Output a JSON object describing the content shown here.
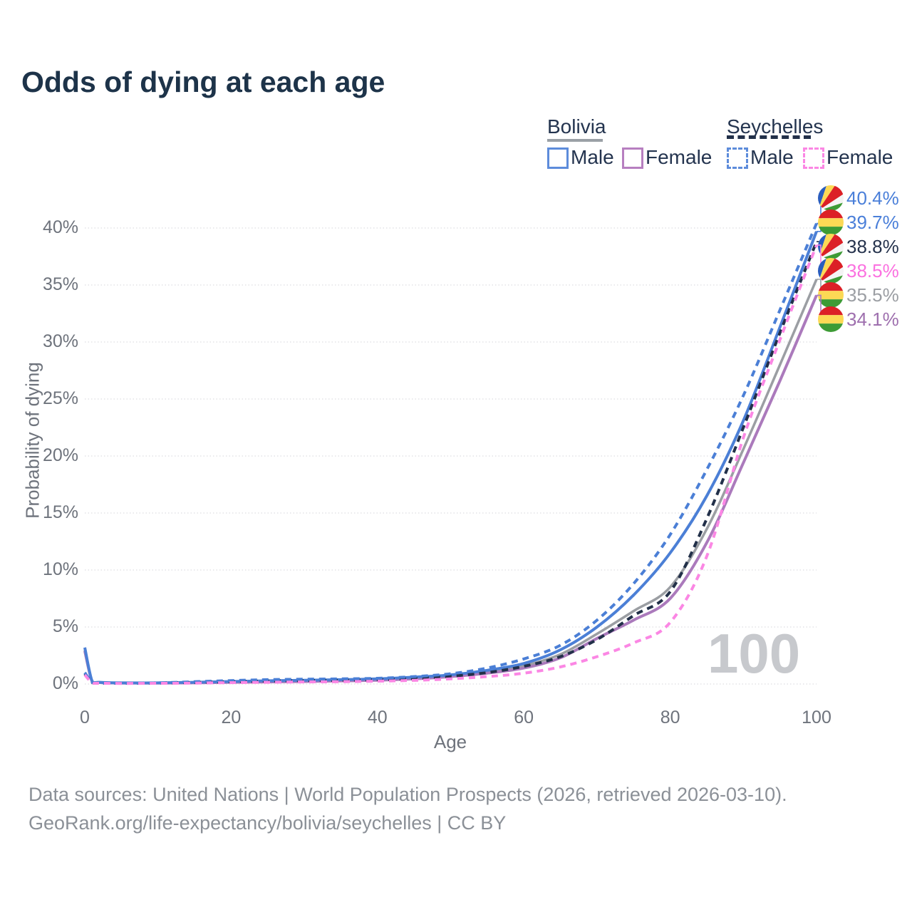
{
  "title": "Odds of dying at each age",
  "legend": {
    "groups": [
      {
        "country": "Bolivia",
        "line_style": "solid",
        "underline_color": "#9aa0a6",
        "items": [
          {
            "label": "Male",
            "color": "#5d8cdb"
          },
          {
            "label": "Female",
            "color": "#b77fc0"
          }
        ]
      },
      {
        "country": "Seychelles",
        "line_style": "dashed",
        "underline_color": "#223049",
        "items": [
          {
            "label": "Male",
            "color": "#5d8cdb"
          },
          {
            "label": "Female",
            "color": "#fb87e4"
          }
        ]
      }
    ]
  },
  "watermark_age": "100",
  "footer": {
    "line1": "Data sources: United Nations | World Population Prospects (2026, retrieved 2026-03-10).",
    "line2": "GeoRank.org/life-expectancy/bolivia/seychelles | CC BY"
  },
  "chart_data": {
    "type": "line",
    "title": "Odds of dying at each age",
    "xlabel": "Age",
    "ylabel": "Probability of dying",
    "xlim": [
      0,
      100
    ],
    "ylim_percent": [
      0,
      42
    ],
    "x_ticks": [
      0,
      20,
      40,
      60,
      80,
      100
    ],
    "y_ticks_percent": [
      0,
      5,
      10,
      15,
      20,
      25,
      30,
      35,
      40
    ],
    "grid": "horizontal-dotted",
    "legend_position": "top-right",
    "ages": [
      0,
      1,
      2,
      5,
      10,
      15,
      20,
      25,
      30,
      35,
      40,
      45,
      50,
      55,
      60,
      65,
      70,
      75,
      80,
      85,
      90,
      95,
      100
    ],
    "series": [
      {
        "name": "Seychelles Male",
        "country": "Seychelles",
        "sex": "male",
        "color": "#4b7fd6",
        "dashed": true,
        "flag": "seychelles",
        "end_label": "40.4%",
        "label_color": "#4a7fd9",
        "values_percent": [
          1.0,
          0.15,
          0.1,
          0.08,
          0.1,
          0.2,
          0.3,
          0.38,
          0.42,
          0.45,
          0.5,
          0.65,
          0.9,
          1.4,
          2.2,
          3.4,
          5.6,
          8.8,
          13.1,
          18.8,
          25.3,
          32.8,
          40.4
        ]
      },
      {
        "name": "Bolivia Male",
        "country": "Bolivia",
        "sex": "male",
        "color": "#4b7fd6",
        "dashed": false,
        "flag": "bolivia",
        "end_label": "39.7%",
        "label_color": "#4a7fd9",
        "values_percent": [
          3.2,
          0.25,
          0.15,
          0.1,
          0.1,
          0.15,
          0.22,
          0.28,
          0.33,
          0.38,
          0.45,
          0.6,
          0.8,
          1.2,
          1.8,
          3.0,
          5.0,
          7.8,
          11.5,
          16.5,
          23.1,
          31.3,
          39.7
        ]
      },
      {
        "name": "Seychelles Both sexes",
        "country": "Seychelles",
        "sex": "both",
        "color": "#223049",
        "dashed": true,
        "flag": "seychelles",
        "end_label": "38.8%",
        "label_color": "#26334d",
        "values_percent": [
          0.9,
          0.13,
          0.08,
          0.06,
          0.08,
          0.14,
          0.2,
          0.26,
          0.3,
          0.33,
          0.38,
          0.48,
          0.68,
          1.0,
          1.55,
          2.4,
          3.9,
          6.0,
          8.1,
          14.5,
          22.5,
          30.8,
          38.8
        ]
      },
      {
        "name": "Seychelles Female",
        "country": "Seychelles",
        "sex": "female",
        "color": "#fb87e4",
        "dashed": true,
        "flag": "seychelles",
        "end_label": "38.5%",
        "label_color": "#fb71e0",
        "values_percent": [
          0.8,
          0.12,
          0.07,
          0.05,
          0.06,
          0.08,
          0.12,
          0.15,
          0.18,
          0.2,
          0.25,
          0.32,
          0.45,
          0.65,
          0.95,
          1.5,
          2.4,
          3.6,
          5.4,
          11.2,
          21.6,
          30.2,
          38.5
        ]
      },
      {
        "name": "Bolivia Both sexes",
        "country": "Bolivia",
        "sex": "both",
        "color": "#9b9ea3",
        "dashed": false,
        "flag": "bolivia",
        "end_label": "35.5%",
        "label_color": "#9b9ea3",
        "values_percent": [
          3.0,
          0.24,
          0.14,
          0.09,
          0.09,
          0.13,
          0.19,
          0.23,
          0.28,
          0.33,
          0.39,
          0.52,
          0.72,
          1.08,
          1.6,
          2.6,
          4.4,
          6.4,
          8.5,
          13.6,
          20.6,
          28.0,
          35.5
        ]
      },
      {
        "name": "Bolivia Female",
        "country": "Bolivia",
        "sex": "female",
        "color": "#ab7abc",
        "dashed": false,
        "flag": "bolivia",
        "end_label": "34.1%",
        "label_color": "#9e6fae",
        "values_percent": [
          2.9,
          0.22,
          0.13,
          0.08,
          0.08,
          0.1,
          0.15,
          0.18,
          0.22,
          0.27,
          0.33,
          0.45,
          0.65,
          0.95,
          1.4,
          2.3,
          4.0,
          5.6,
          7.5,
          12.4,
          19.4,
          26.6,
          34.1
        ]
      }
    ],
    "flag_colors": {
      "seychelles": [
        "#2a5dbe",
        "#fcd955",
        "#dc2026",
        "#f4f4f4",
        "#3d9b35"
      ],
      "bolivia": [
        "#dc2026",
        "#fcd955",
        "#3d9b35"
      ]
    }
  }
}
